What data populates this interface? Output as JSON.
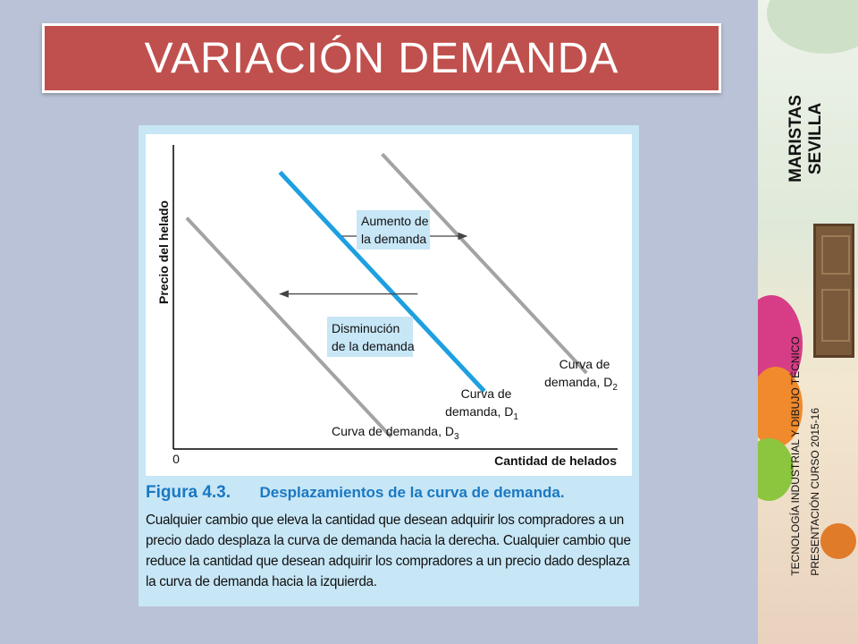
{
  "slide": {
    "title": "VARIACIÓN DEMANDA",
    "brand_line1": "MARISTAS",
    "brand_line2": "SEVILLA",
    "footer_line1": "TECNOLOGÍA INDUSTRIAL Y DIBUJO TÉCNICO",
    "footer_line2": "PRESENTACIÓN CURSO 2015-16"
  },
  "caption": {
    "figure_label": "Figura 4.3.",
    "heading": "Desplazamientos de la curva de demanda.",
    "body": "Cualquier cambio que eleva la cantidad que desean adquirir los compradores a un precio dado desplaza la curva de demanda hacia la derecha. Cualquier cambio que reduce la cantidad que desean adquirir los compradores a un precio dado desplaza la curva de demanda hacia la izquierda."
  },
  "colors": {
    "title_bg": "#c0504d",
    "panel_bg": "#c7e6f6",
    "curve_d1": "#1ea0e0",
    "curve_shifted": "#a3a3a3",
    "label_box": "#c7e6f6",
    "caption_blue": "#1a78c2"
  },
  "chart_data": {
    "type": "line",
    "xlabel": "Cantidad de helados",
    "ylabel": "Precio del helado",
    "origin_label": "0",
    "xlim": [
      0,
      100
    ],
    "ylim": [
      0,
      100
    ],
    "grid": false,
    "series": [
      {
        "key": "d1",
        "name": "Curva de demanda, D1",
        "label_line1": "Curva de",
        "label_line2": "demanda, D",
        "subscript": "1",
        "x": [
          24,
          70
        ],
        "y": [
          91,
          19
        ]
      },
      {
        "key": "d2",
        "name": "Curva de demanda, D2",
        "label_line1": "Curva de",
        "label_line2": "demanda, D",
        "subscript": "2",
        "x": [
          47,
          93
        ],
        "y": [
          97,
          25
        ]
      },
      {
        "key": "d3",
        "name": "Curva de demanda, D3",
        "label_line1": "Curva de demanda, D",
        "subscript": "3",
        "x": [
          3,
          49
        ],
        "y": [
          76,
          4
        ]
      }
    ],
    "annotations": [
      {
        "key": "increase",
        "line1": "Aumento de",
        "line2": "la demanda",
        "arrow_from_x": 38,
        "arrow_to_x": 66,
        "arrow_y": 70
      },
      {
        "key": "decrease",
        "line1": "Disminución",
        "line2": "de la demanda",
        "arrow_from_x": 55,
        "arrow_to_x": 24,
        "arrow_y": 51
      }
    ]
  }
}
